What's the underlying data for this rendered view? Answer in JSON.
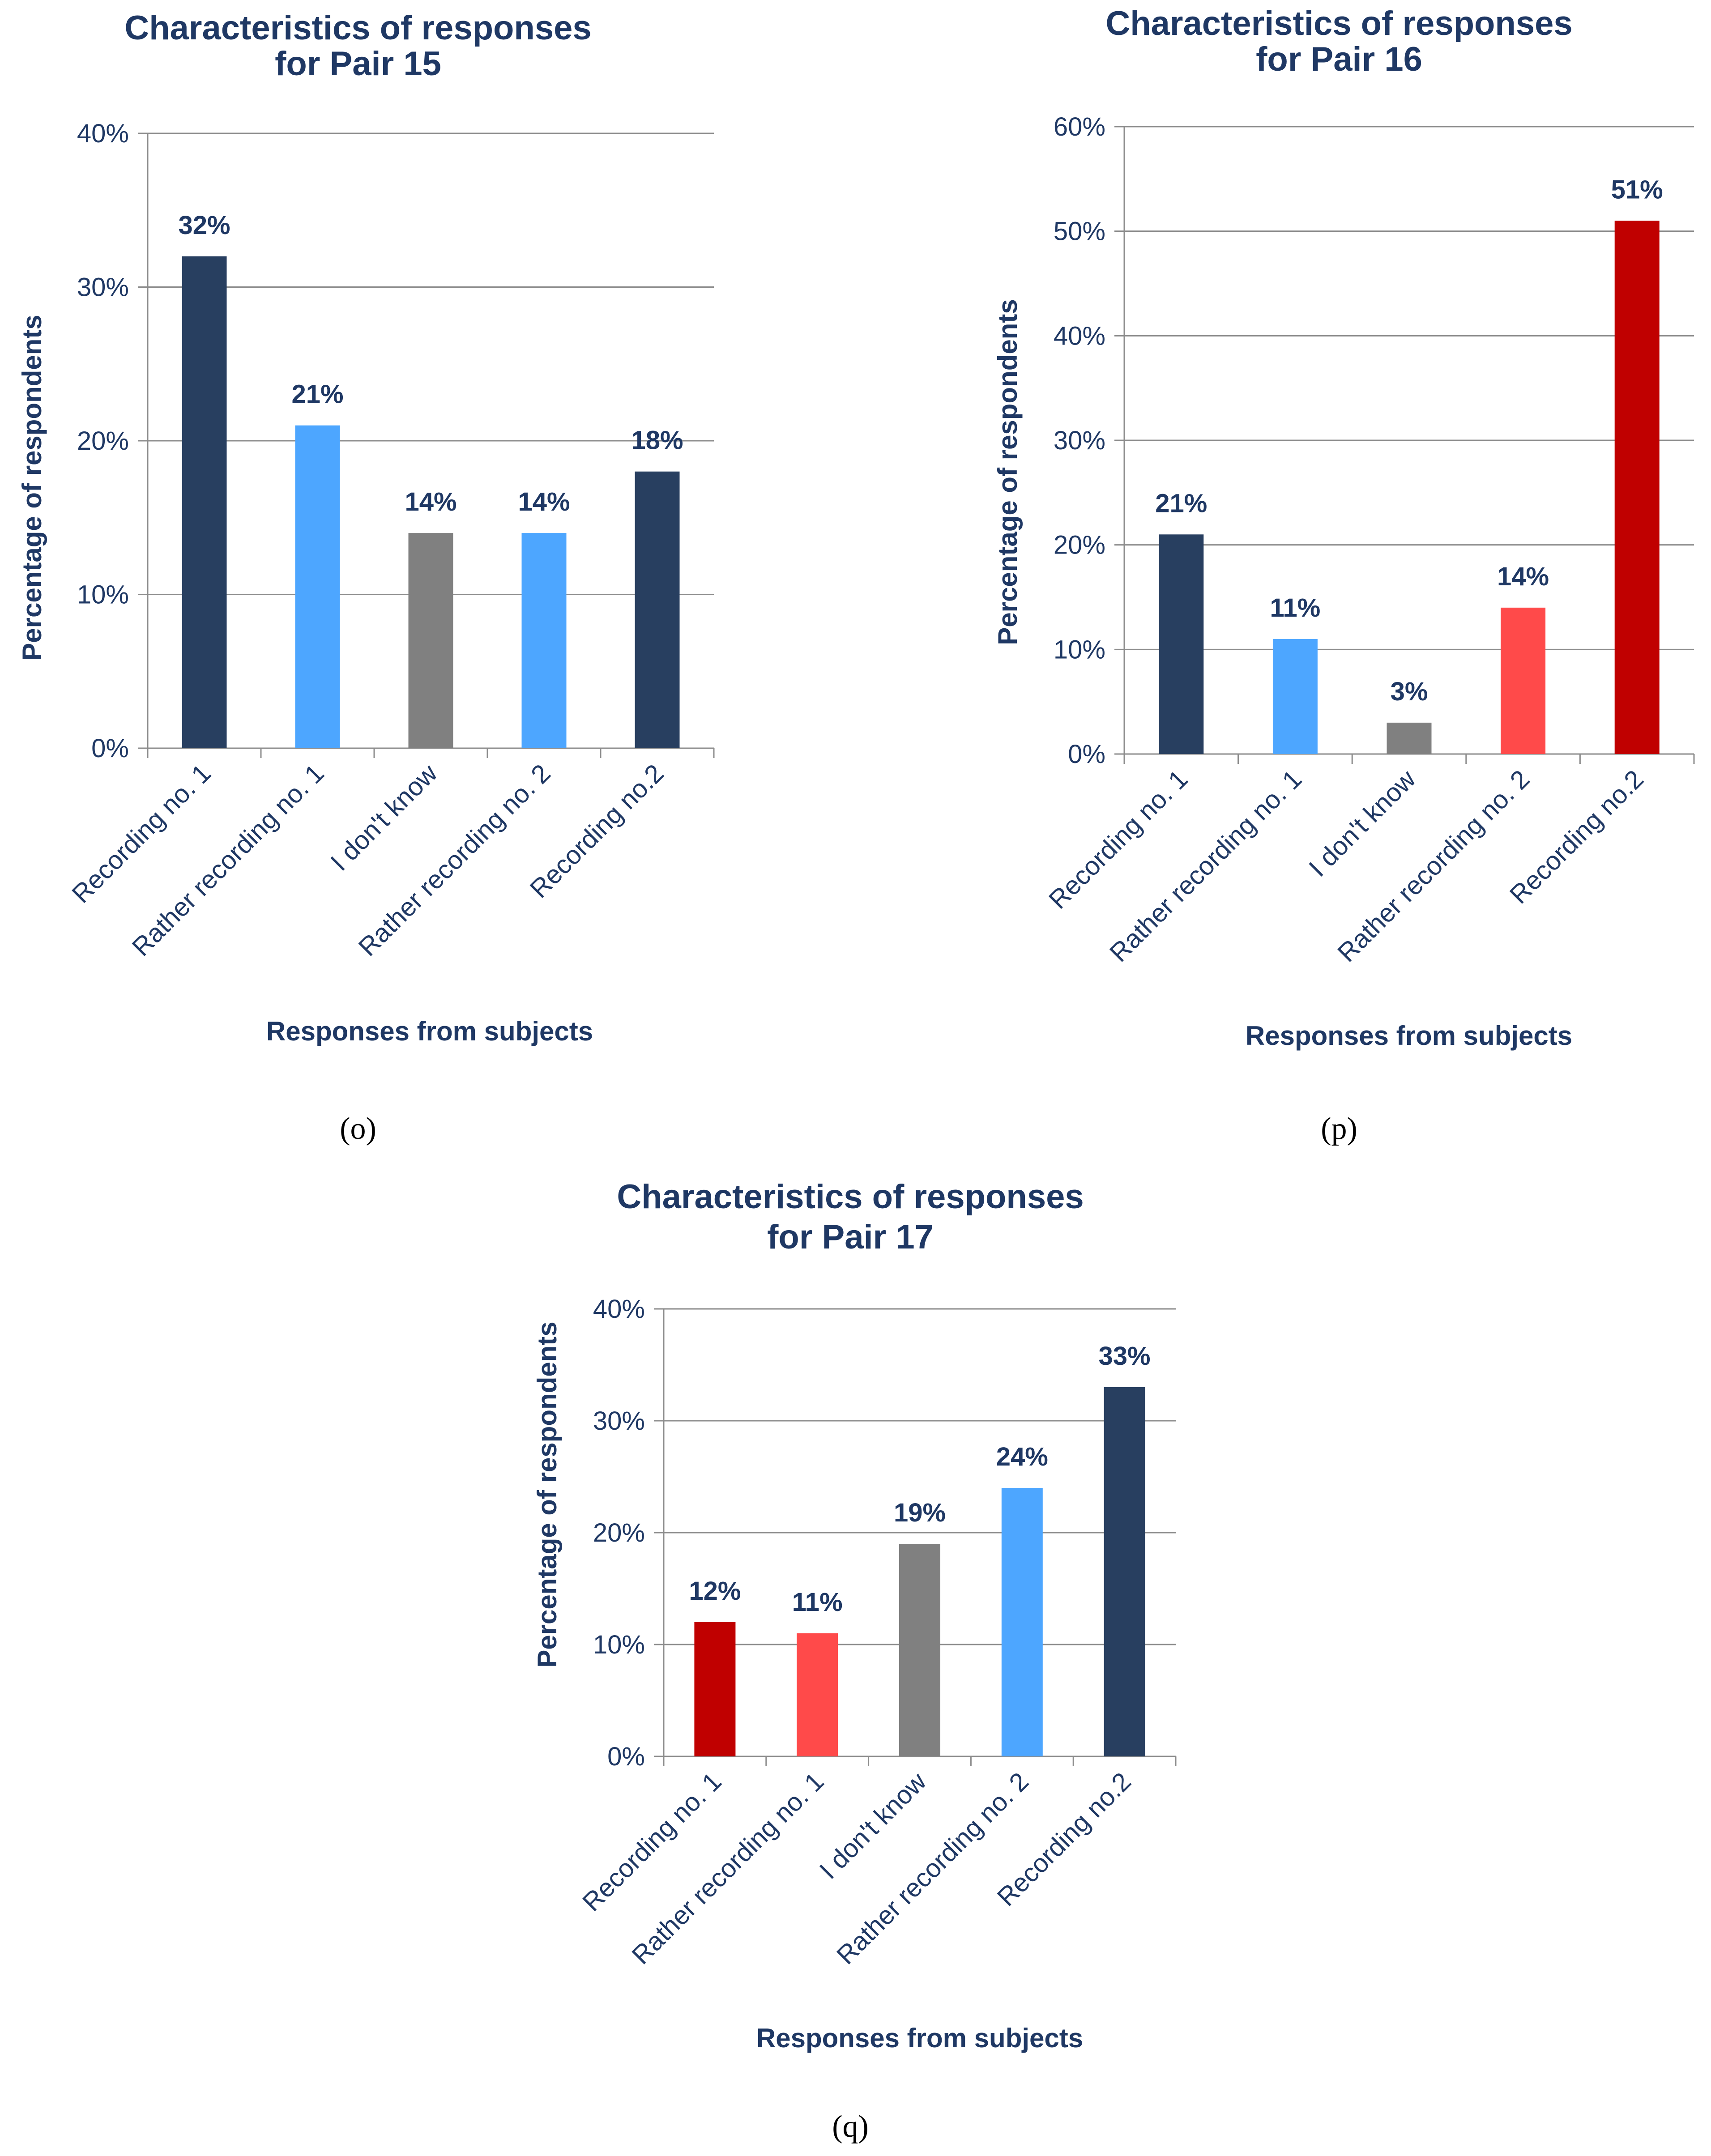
{
  "chart_data": [
    {
      "type": "bar",
      "title_lines": [
        "Characteristics of responses",
        "for Pair 15"
      ],
      "xlabel": "Responses from subjects",
      "ylabel": "Percentage of respondents",
      "ylim": [
        0,
        40
      ],
      "yticks": [
        "0%",
        "10%",
        "20%",
        "30%",
        "40%"
      ],
      "grid": true,
      "categories": [
        "Recording no. 1",
        "Rather recording no. 1",
        "I don't know",
        "Rather recording no. 2",
        "Recording no.2"
      ],
      "values": [
        32,
        21,
        14,
        14,
        18
      ],
      "data_labels": [
        "32%",
        "21%",
        "14%",
        "14%",
        "18%"
      ],
      "colors": [
        "#283f60",
        "#4da6ff",
        "#808080",
        "#4da6ff",
        "#283f60"
      ],
      "caption": "(o)"
    },
    {
      "type": "bar",
      "title_lines": [
        "Characteristics of responses",
        "for Pair 16"
      ],
      "xlabel": "Responses from subjects",
      "ylabel": "Percentage of respondents",
      "ylim": [
        0,
        60
      ],
      "yticks": [
        "0%",
        "10%",
        "20%",
        "30%",
        "40%",
        "50%",
        "60%"
      ],
      "grid": true,
      "categories": [
        "Recording no. 1",
        "Rather recording no. 1",
        "I don't know",
        "Rather recording no. 2",
        "Recording no.2"
      ],
      "values": [
        21,
        11,
        3,
        14,
        51
      ],
      "data_labels": [
        "21%",
        "11%",
        "3%",
        "14%",
        "51%"
      ],
      "colors": [
        "#283f60",
        "#4da6ff",
        "#808080",
        "#ff4a4a",
        "#c00000"
      ],
      "caption": "(p)"
    },
    {
      "type": "bar",
      "title_lines": [
        "Characteristics of responses",
        "for Pair 17"
      ],
      "xlabel": "Responses from subjects",
      "ylabel": "Percentage of respondents",
      "ylim": [
        0,
        40
      ],
      "yticks": [
        "0%",
        "10%",
        "20%",
        "30%",
        "40%"
      ],
      "grid": true,
      "categories": [
        "Recording no. 1",
        "Rather recording no. 1",
        "I don't know",
        "Rather recording no. 2",
        "Recording no.2"
      ],
      "values": [
        12,
        11,
        19,
        24,
        33
      ],
      "data_labels": [
        "12%",
        "11%",
        "19%",
        "24%",
        "33%"
      ],
      "colors": [
        "#c00000",
        "#ff4a4a",
        "#808080",
        "#4da6ff",
        "#283f60"
      ],
      "caption": "(q)"
    }
  ]
}
